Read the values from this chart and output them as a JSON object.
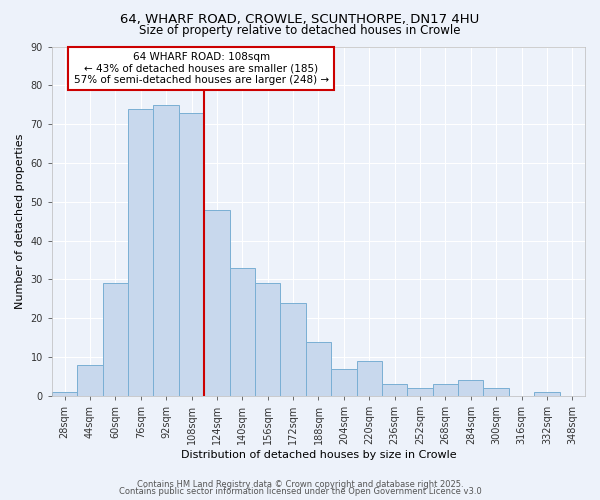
{
  "title1": "64, WHARF ROAD, CROWLE, SCUNTHORPE, DN17 4HU",
  "title2": "Size of property relative to detached houses in Crowle",
  "xlabel": "Distribution of detached houses by size in Crowle",
  "ylabel": "Number of detached properties",
  "bar_labels": [
    "28sqm",
    "44sqm",
    "60sqm",
    "76sqm",
    "92sqm",
    "108sqm",
    "124sqm",
    "140sqm",
    "156sqm",
    "172sqm",
    "188sqm",
    "204sqm",
    "220sqm",
    "236sqm",
    "252sqm",
    "268sqm",
    "284sqm",
    "300sqm",
    "316sqm",
    "332sqm",
    "348sqm"
  ],
  "bar_values": [
    1,
    8,
    29,
    74,
    75,
    73,
    48,
    33,
    29,
    24,
    14,
    7,
    9,
    3,
    2,
    3,
    4,
    2,
    0,
    1,
    0
  ],
  "bar_color": "#c8d8ed",
  "bar_edgecolor": "#7aafd4",
  "red_line_index": 5,
  "red_line_label1": "64 WHARF ROAD: 108sqm",
  "red_line_label2": "← 43% of detached houses are smaller (185)",
  "red_line_label3": "57% of semi-detached houses are larger (248) →",
  "annotation_box_facecolor": "#ffffff",
  "annotation_box_edgecolor": "#cc0000",
  "footer1": "Contains HM Land Registry data © Crown copyright and database right 2025.",
  "footer2": "Contains public sector information licensed under the Open Government Licence v3.0",
  "bg_color": "#edf2fa",
  "grid_color": "#ffffff",
  "ylim": [
    0,
    90
  ],
  "yticks": [
    0,
    10,
    20,
    30,
    40,
    50,
    60,
    70,
    80,
    90
  ],
  "title1_fontsize": 9.5,
  "title2_fontsize": 8.5,
  "xlabel_fontsize": 8,
  "ylabel_fontsize": 8,
  "tick_fontsize": 7,
  "annotation_fontsize": 7.5,
  "footer_fontsize": 6
}
